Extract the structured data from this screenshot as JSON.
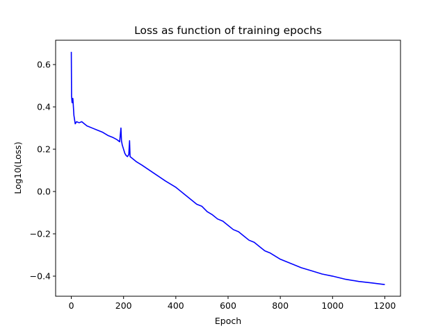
{
  "chart_data": {
    "type": "line",
    "title": "Loss as function of training epochs",
    "xlabel": "Epoch",
    "ylabel": "Log10(Loss)",
    "xlim": [
      -60,
      1260
    ],
    "ylim": [
      -0.495,
      0.715
    ],
    "xticks": [
      0,
      200,
      400,
      600,
      800,
      1000,
      1200
    ],
    "yticks": [
      -0.4,
      -0.2,
      0.0,
      0.2,
      0.4,
      0.6
    ],
    "ytick_labels": [
      "−0.4",
      "−0.2",
      "0.0",
      "0.2",
      "0.4",
      "0.6"
    ],
    "grid": false,
    "series": [
      {
        "color": "#0000ff",
        "x": [
          0,
          1,
          3,
          6,
          10,
          15,
          20,
          30,
          40,
          50,
          60,
          80,
          100,
          120,
          140,
          160,
          175,
          185,
          190,
          192,
          195,
          200,
          205,
          210,
          215,
          220,
          223,
          225,
          230,
          250,
          270,
          300,
          330,
          360,
          400,
          430,
          460,
          480,
          500,
          520,
          540,
          560,
          580,
          600,
          620,
          640,
          660,
          680,
          700,
          720,
          740,
          760,
          780,
          800,
          840,
          880,
          920,
          960,
          1000,
          1050,
          1100,
          1150,
          1200
        ],
        "y": [
          0.66,
          0.45,
          0.42,
          0.44,
          0.36,
          0.32,
          0.33,
          0.325,
          0.33,
          0.32,
          0.31,
          0.3,
          0.29,
          0.28,
          0.265,
          0.255,
          0.245,
          0.235,
          0.3,
          0.24,
          0.22,
          0.2,
          0.18,
          0.17,
          0.165,
          0.175,
          0.24,
          0.165,
          0.16,
          0.14,
          0.125,
          0.1,
          0.075,
          0.05,
          0.02,
          -0.01,
          -0.04,
          -0.06,
          -0.07,
          -0.095,
          -0.11,
          -0.13,
          -0.14,
          -0.16,
          -0.18,
          -0.19,
          -0.21,
          -0.23,
          -0.24,
          -0.26,
          -0.28,
          -0.29,
          -0.305,
          -0.32,
          -0.34,
          -0.36,
          -0.375,
          -0.39,
          -0.4,
          -0.415,
          -0.425,
          -0.432,
          -0.44
        ]
      }
    ]
  }
}
